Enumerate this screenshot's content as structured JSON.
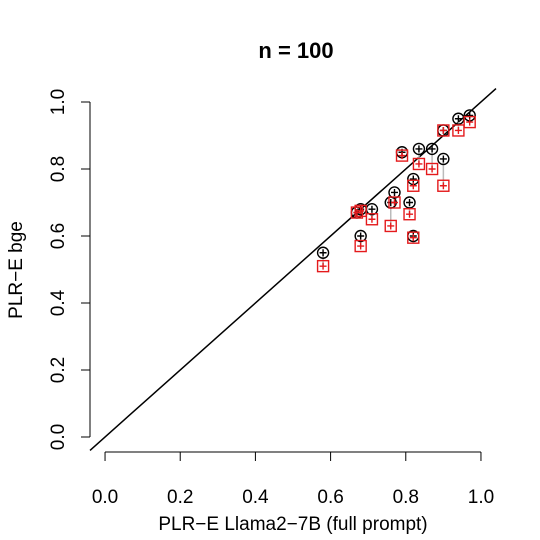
{
  "chart_data": {
    "type": "scatter",
    "title": "n = 100",
    "x_label": "PLR−E Llama2−7B (full prompt)",
    "y_label": "PLR−E bge",
    "x": [
      0.58,
      0.68,
      0.67,
      0.68,
      0.71,
      0.76,
      0.77,
      0.79,
      0.81,
      0.82,
      0.82,
      0.835,
      0.87,
      0.9,
      0.9,
      0.94,
      0.97
    ],
    "series": [
      {
        "color": "#000000",
        "marker": "circle",
        "values": [
          0.55,
          0.6,
          0.67,
          0.68,
          0.68,
          0.7,
          0.73,
          0.85,
          0.7,
          0.6,
          0.77,
          0.86,
          0.86,
          0.83,
          0.915,
          0.95,
          0.96
        ]
      },
      {
        "color": "#e41a1c",
        "marker": "square",
        "values": [
          0.51,
          0.57,
          0.67,
          0.675,
          0.65,
          0.63,
          0.7,
          0.84,
          0.665,
          0.595,
          0.75,
          0.815,
          0.8,
          0.75,
          0.915,
          0.915,
          0.94
        ]
      }
    ],
    "connector_color": "#bbbbbb",
    "diagonal": true,
    "xlim": [
      -0.04,
      1.04
    ],
    "ylim": [
      -0.04,
      1.04
    ],
    "xticks": [
      {
        "value": 0,
        "label": "0.0"
      },
      0.2,
      0.4,
      0.6,
      0.8,
      {
        "value": 1,
        "label": "1.0"
      }
    ],
    "yticks": [
      {
        "value": 0,
        "label": "0.0"
      },
      0.2,
      0.4,
      0.6,
      0.8,
      {
        "value": 1,
        "label": "1.0"
      }
    ]
  }
}
